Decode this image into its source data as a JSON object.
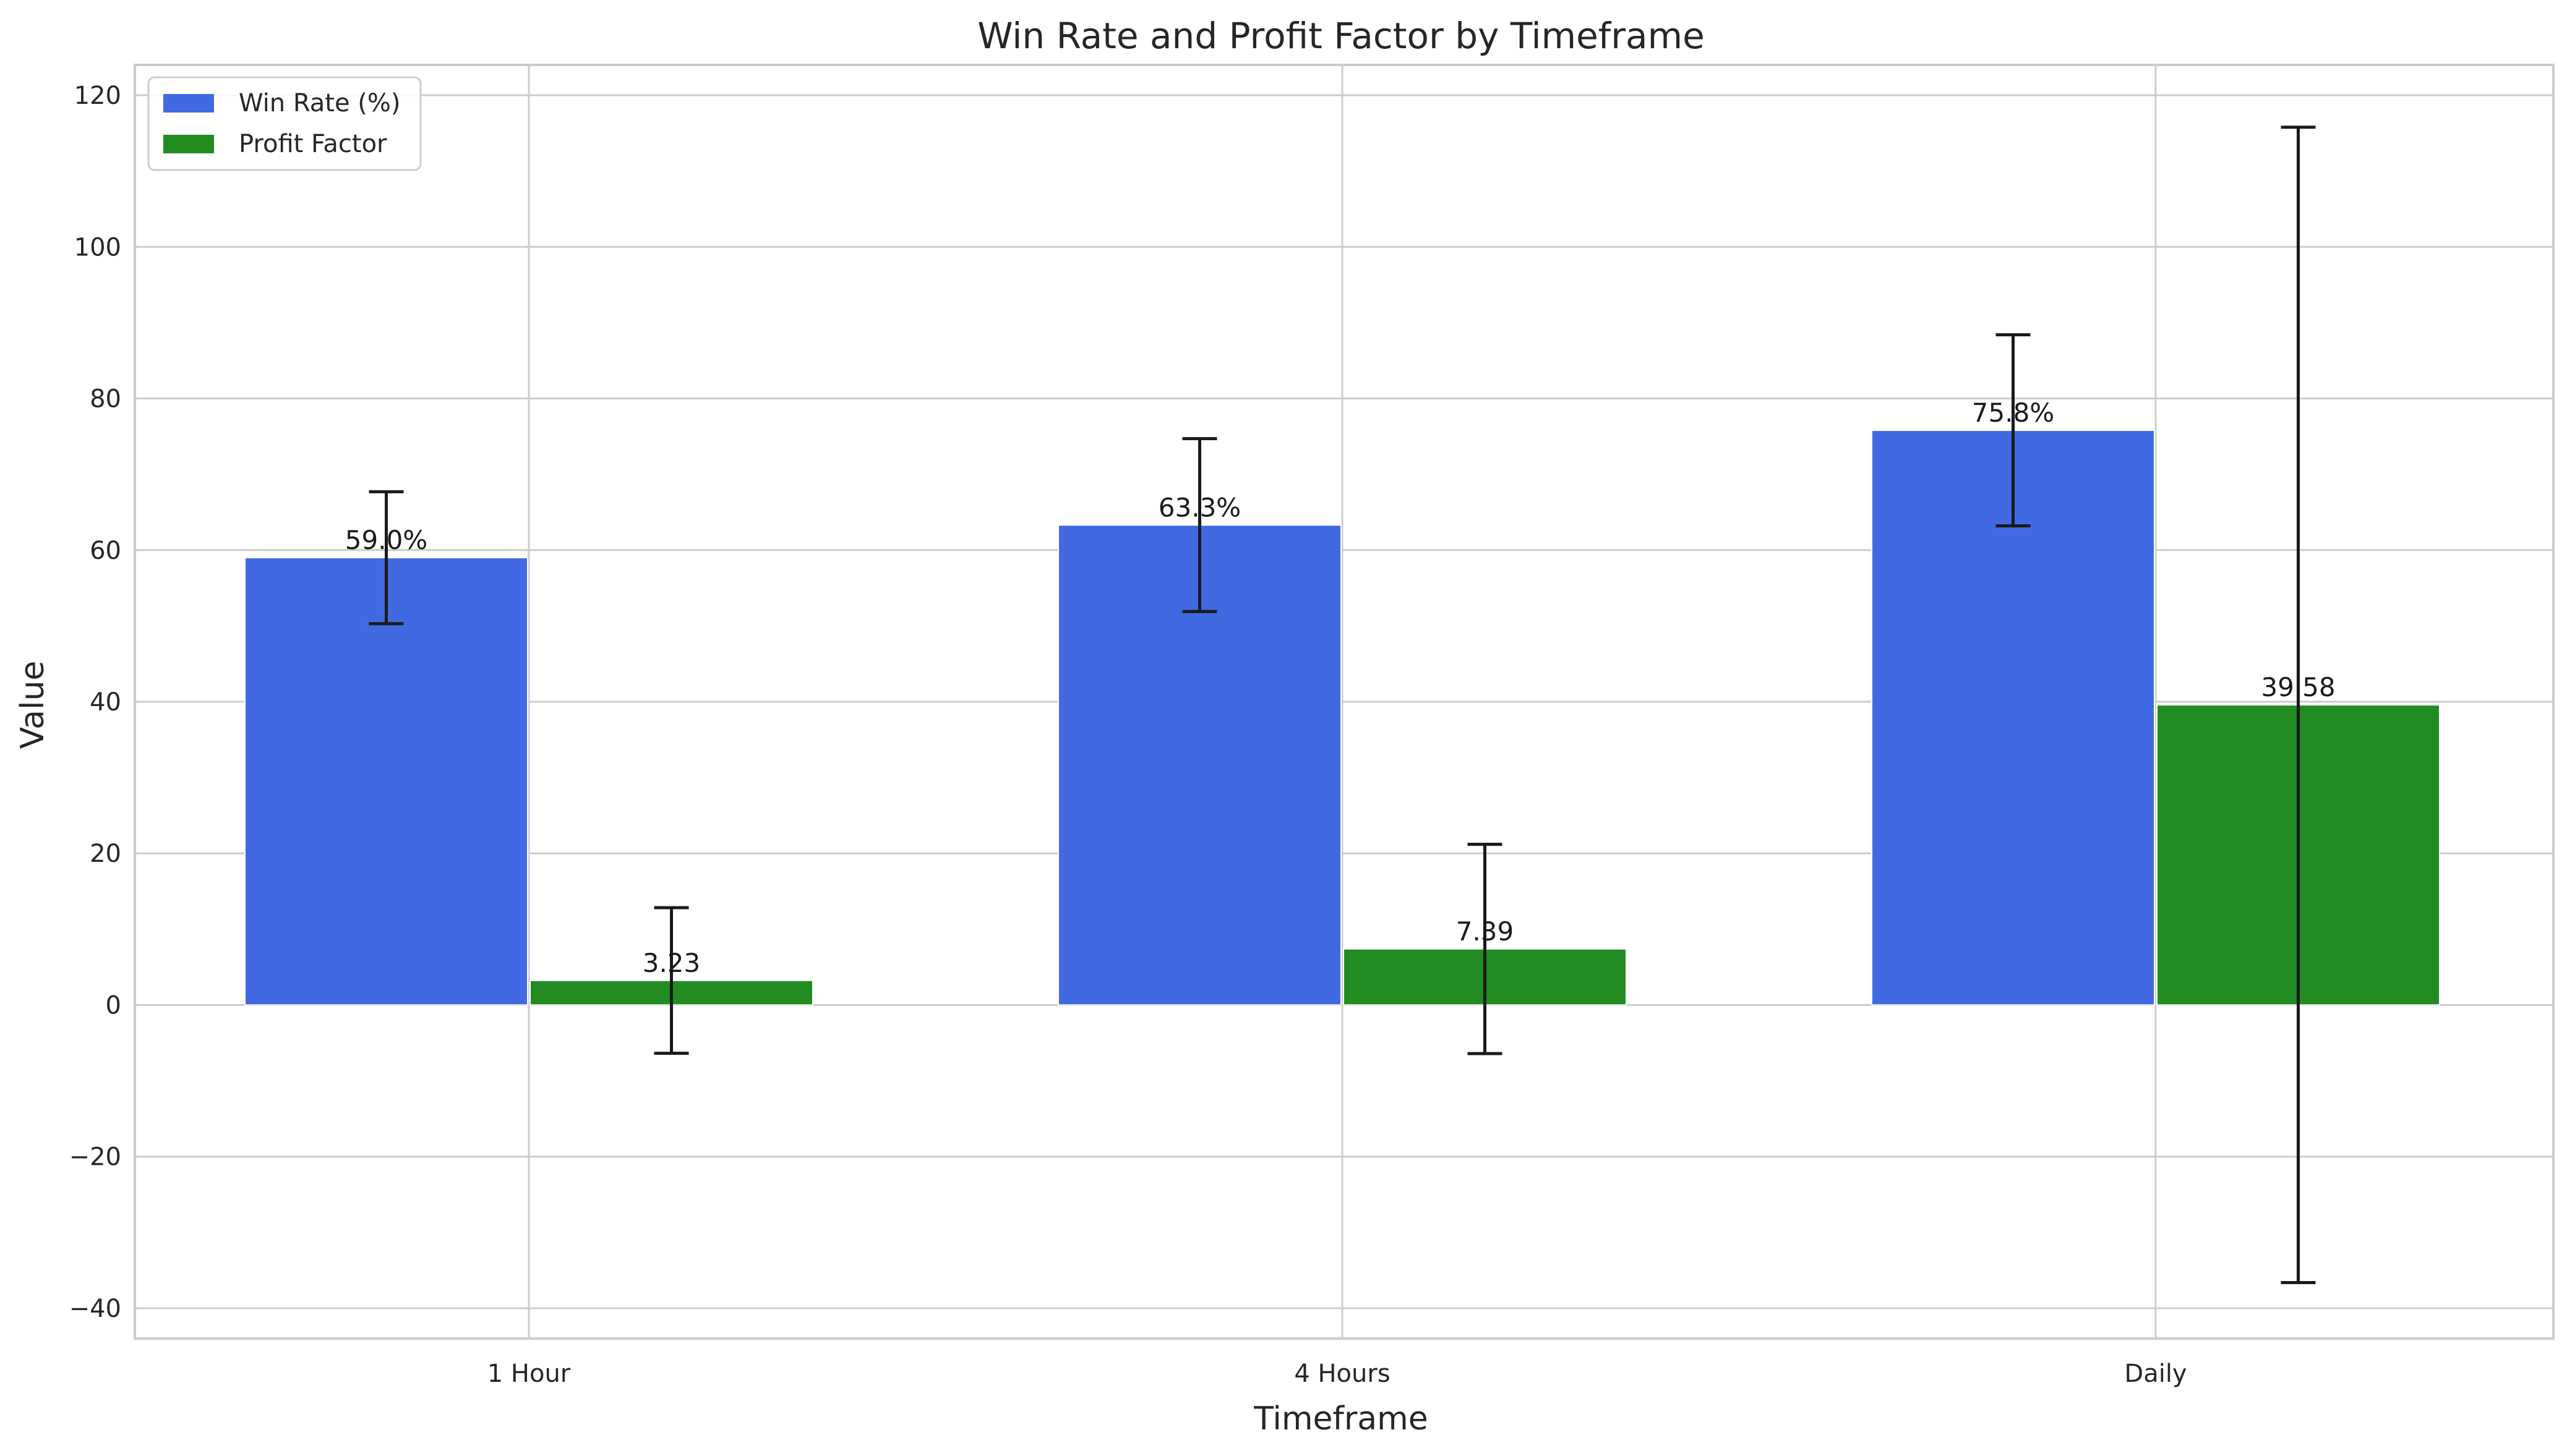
{
  "chart_data": {
    "type": "bar",
    "title": "Win Rate and Profit Factor by Timeframe",
    "xlabel": "Timeframe",
    "ylabel": "Value",
    "categories": [
      "1 Hour",
      "4 Hours",
      "Daily"
    ],
    "ylim": [
      -44,
      124
    ],
    "yticks": [
      -40,
      -20,
      0,
      20,
      40,
      60,
      80,
      100,
      120
    ],
    "ytick_labels": [
      "−40",
      "−20",
      "0",
      "20",
      "40",
      "60",
      "80",
      "100",
      "120"
    ],
    "grid": true,
    "legend_position": "top-left",
    "series": [
      {
        "name": "Win Rate (%)",
        "color": "#4169e1",
        "values": [
          59.0,
          63.3,
          75.8
        ],
        "errors": [
          8.7,
          11.4,
          12.6
        ],
        "labels": [
          "59.0%",
          "63.3%",
          "75.8%"
        ]
      },
      {
        "name": "Profit Factor",
        "color": "#228b22",
        "values": [
          3.23,
          7.39,
          39.58
        ],
        "errors": [
          9.6,
          13.8,
          76.2
        ],
        "labels": [
          "3.23",
          "7.39",
          "39.58"
        ]
      }
    ]
  }
}
